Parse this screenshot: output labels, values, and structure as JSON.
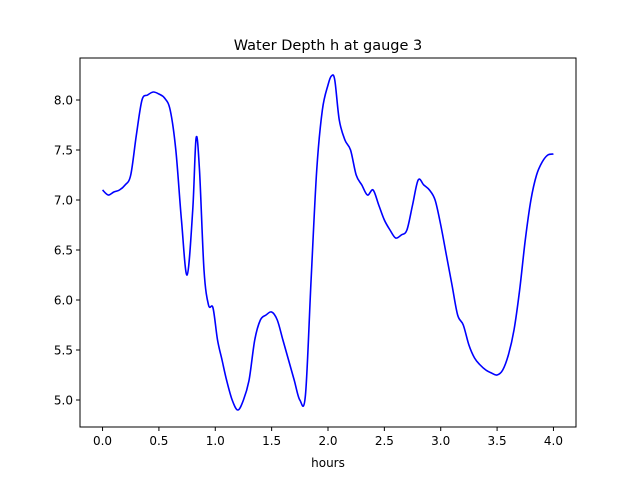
{
  "chart_data": {
    "type": "line",
    "title": "Water Depth h at gauge 3",
    "xlabel": "hours",
    "ylabel": "",
    "xlim": [
      -0.2,
      4.2
    ],
    "ylim": [
      4.73,
      8.42
    ],
    "xticks": [
      0.0,
      0.5,
      1.0,
      1.5,
      2.0,
      2.5,
      3.0,
      3.5,
      4.0
    ],
    "xtick_labels": [
      "0.0",
      "0.5",
      "1.0",
      "1.5",
      "2.0",
      "2.5",
      "3.0",
      "3.5",
      "4.0"
    ],
    "yticks": [
      5.0,
      5.5,
      6.0,
      6.5,
      7.0,
      7.5,
      8.0
    ],
    "ytick_labels": [
      "5.0",
      "5.5",
      "6.0",
      "6.5",
      "7.0",
      "7.5",
      "8.0"
    ],
    "grid": false,
    "series": [
      {
        "color": "#0000ff",
        "x": [
          0.0,
          0.05,
          0.1,
          0.15,
          0.2,
          0.25,
          0.3,
          0.35,
          0.4,
          0.45,
          0.5,
          0.55,
          0.6,
          0.65,
          0.7,
          0.75,
          0.8,
          0.83,
          0.86,
          0.9,
          0.94,
          0.98,
          1.02,
          1.06,
          1.1,
          1.15,
          1.2,
          1.25,
          1.3,
          1.35,
          1.4,
          1.45,
          1.5,
          1.55,
          1.6,
          1.65,
          1.7,
          1.75,
          1.8,
          1.85,
          1.9,
          1.95,
          2.0,
          2.03,
          2.06,
          2.1,
          2.15,
          2.2,
          2.25,
          2.3,
          2.35,
          2.4,
          2.45,
          2.5,
          2.55,
          2.6,
          2.65,
          2.7,
          2.75,
          2.8,
          2.85,
          2.9,
          2.95,
          3.0,
          3.05,
          3.1,
          3.15,
          3.2,
          3.25,
          3.3,
          3.35,
          3.4,
          3.45,
          3.5,
          3.55,
          3.6,
          3.65,
          3.7,
          3.75,
          3.8,
          3.85,
          3.9,
          3.95,
          4.0
        ],
        "y": [
          7.1,
          7.05,
          7.08,
          7.1,
          7.15,
          7.25,
          7.65,
          8.0,
          8.05,
          8.08,
          8.06,
          8.02,
          7.9,
          7.5,
          6.8,
          6.25,
          6.9,
          7.62,
          7.3,
          6.3,
          5.95,
          5.92,
          5.6,
          5.4,
          5.2,
          5.0,
          4.9,
          5.0,
          5.2,
          5.6,
          5.8,
          5.85,
          5.88,
          5.8,
          5.6,
          5.4,
          5.2,
          5.0,
          5.05,
          6.2,
          7.3,
          7.9,
          8.15,
          8.24,
          8.2,
          7.8,
          7.6,
          7.5,
          7.25,
          7.15,
          7.05,
          7.1,
          6.95,
          6.8,
          6.7,
          6.62,
          6.65,
          6.7,
          6.95,
          7.2,
          7.15,
          7.1,
          7.0,
          6.75,
          6.45,
          6.15,
          5.85,
          5.75,
          5.55,
          5.42,
          5.35,
          5.3,
          5.27,
          5.25,
          5.3,
          5.45,
          5.7,
          6.1,
          6.6,
          7.0,
          7.25,
          7.38,
          7.45,
          7.46
        ]
      }
    ]
  }
}
